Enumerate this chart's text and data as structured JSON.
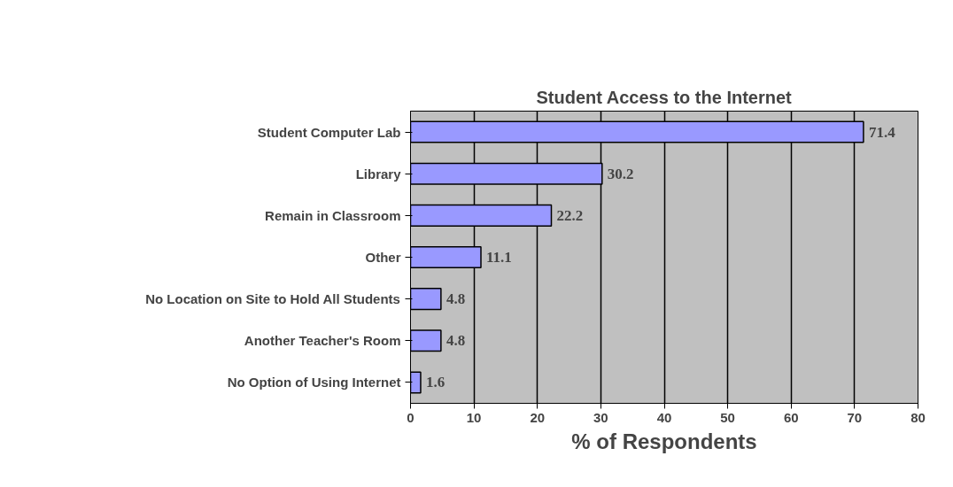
{
  "chart_data": {
    "type": "bar",
    "orientation": "horizontal",
    "title": "Student Access to the Internet",
    "xlabel": "% of Respondents",
    "categories": [
      "Student Computer Lab",
      "Library",
      "Remain in Classroom",
      "Other",
      "No Location on Site to Hold All Students",
      "Another Teacher's Room",
      "No Option of Using Internet"
    ],
    "values": [
      71.4,
      30.2,
      22.2,
      11.1,
      4.8,
      4.8,
      1.6
    ],
    "color": "#9999ff",
    "xlim": [
      0,
      80
    ],
    "xticks": [
      0,
      10,
      20,
      30,
      40,
      50,
      60,
      70,
      80
    ],
    "grid": "x",
    "data_labels": true
  }
}
